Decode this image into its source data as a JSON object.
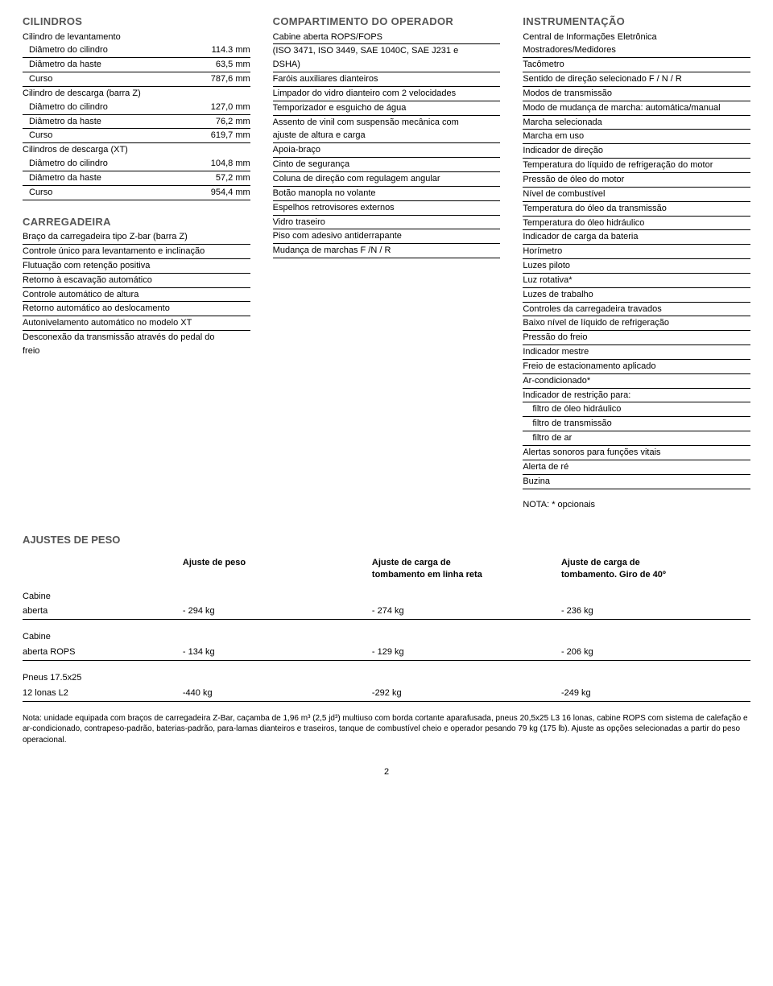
{
  "col1": {
    "cilindros": {
      "title": "CILINDROS",
      "sub1": "Cilindro de levantamento",
      "rows1": [
        {
          "k": "Diâmetro do cilindro",
          "v": "114.3 mm"
        },
        {
          "k": "Diâmetro da haste",
          "v": "63,5 mm"
        },
        {
          "k": "Curso",
          "v": "787,6 mm"
        }
      ],
      "sub2": "Cilindro de descarga (barra Z)",
      "rows2": [
        {
          "k": "Diâmetro do cilindro",
          "v": "127,0 mm"
        },
        {
          "k": "Diâmetro da haste",
          "v": "76,2 mm"
        },
        {
          "k": "Curso",
          "v": "619,7 mm"
        }
      ],
      "sub3": "Cilindros de descarga (XT)",
      "rows3": [
        {
          "k": "Diâmetro do cilindro",
          "v": "104,8 mm"
        },
        {
          "k": "Diâmetro da haste",
          "v": "57,2 mm"
        },
        {
          "k": "Curso",
          "v": "954,4 mm"
        }
      ]
    },
    "carregadeira": {
      "title": "CARREGADEIRA",
      "lines": [
        "Braço da carregadeira tipo Z-bar (barra Z)",
        "Controle único para levantamento e inclinação",
        "Flutuação com retenção positiva",
        "Retorno à escavação automático",
        "Controle automático de altura",
        "Retorno automático ao deslocamento",
        "Autonivelamento automático no modelo XT",
        "Desconexão da transmissão através do pedal do",
        "freio"
      ]
    }
  },
  "col2": {
    "title": "COMPARTIMENTO DO OPERADOR",
    "lines": [
      "Cabine aberta ROPS/FOPS",
      "(ISO 3471, ISO 3449, SAE 1040C, SAE J231 e",
      "DSHA)",
      "Faróis auxiliares dianteiros",
      "Limpador do vidro dianteiro com 2 velocidades",
      "Temporizador e esguicho de água",
      "Assento de vinil com suspensão mecânica com",
      "ajuste de altura e carga",
      "Apoia-braço",
      "Cinto de segurança",
      "Coluna de direção com regulagem angular",
      "Botão manopla no volante",
      "Espelhos retrovisores externos",
      "Vidro traseiro",
      "Piso com adesivo antiderrapante",
      "Mudança de marchas F /N / R"
    ]
  },
  "col3": {
    "title": "INSTRUMENTAÇÃO",
    "sub": "Central de Informações Eletrônica",
    "lines": [
      "Mostradores/Medidores",
      "Tacômetro",
      "Sentido de direção selecionado F / N / R",
      "Modos de transmissão",
      "Modo de mudança de marcha: automática/manual",
      "Marcha selecionada",
      "Marcha em uso",
      "Indicador de direção",
      "Temperatura do líquido de refrigeração do motor",
      "Pressão de óleo do motor",
      "Nível de combustível",
      "Temperatura do óleo da transmissão",
      "Temperatura do óleo hidráulico",
      "Indicador de carga da bateria",
      "Horímetro",
      "Luzes piloto",
      "Luz rotativa*",
      "Luzes de trabalho",
      "Controles da carregadeira travados",
      "Baixo nível de líquido de refrigeração",
      "Pressão do freio",
      "Indicador mestre",
      "Freio de estacionamento aplicado",
      "Ar-condicionado*",
      "Indicador de restrição para:"
    ],
    "indented": [
      "filtro de óleo hidráulico",
      "filtro de transmissão",
      "filtro de ar"
    ],
    "lines2": [
      "Alertas sonoros para funções vitais",
      "Alerta de ré",
      "Buzina"
    ],
    "note": "NOTA: * opcionais"
  },
  "peso": {
    "title": "AJUSTES DE PESO",
    "headers": [
      "",
      "Ajuste de peso",
      "Ajuste de carga de tombamento em linha reta",
      "Ajuste de carga de tombamento. Giro de 40º"
    ],
    "groups": [
      {
        "label1": "Cabine",
        "label2": "aberta",
        "v1": "- 294 kg",
        "v2": "- 274 kg",
        "v3": "- 236 kg"
      },
      {
        "label1": "Cabine",
        "label2": "aberta ROPS",
        "v1": "- 134 kg",
        "v2": "- 129 kg",
        "v3": "- 206 kg"
      },
      {
        "label1": "Pneus 17.5x25",
        "label2": "12 lonas L2",
        "v1": "-440 kg",
        "v2": "-292 kg",
        "v3": "-249 kg"
      }
    ]
  },
  "footnote": "Nota: unidade equipada com braços de carregadeira Z-Bar, caçamba de 1,96 m³ (2,5 jd³) multiuso com borda cortante aparafusada, pneus 20,5x25 L3 16 lonas, cabine ROPS com sistema de calefação e ar-condicionado, contrapeso-padrão, baterias-padrão, para-lamas dianteiros e traseiros, tanque de combustível cheio e operador pesando 79 kg (175 lb). Ajuste as opções selecionadas a partir do peso operacional.",
  "pagenum": "2"
}
